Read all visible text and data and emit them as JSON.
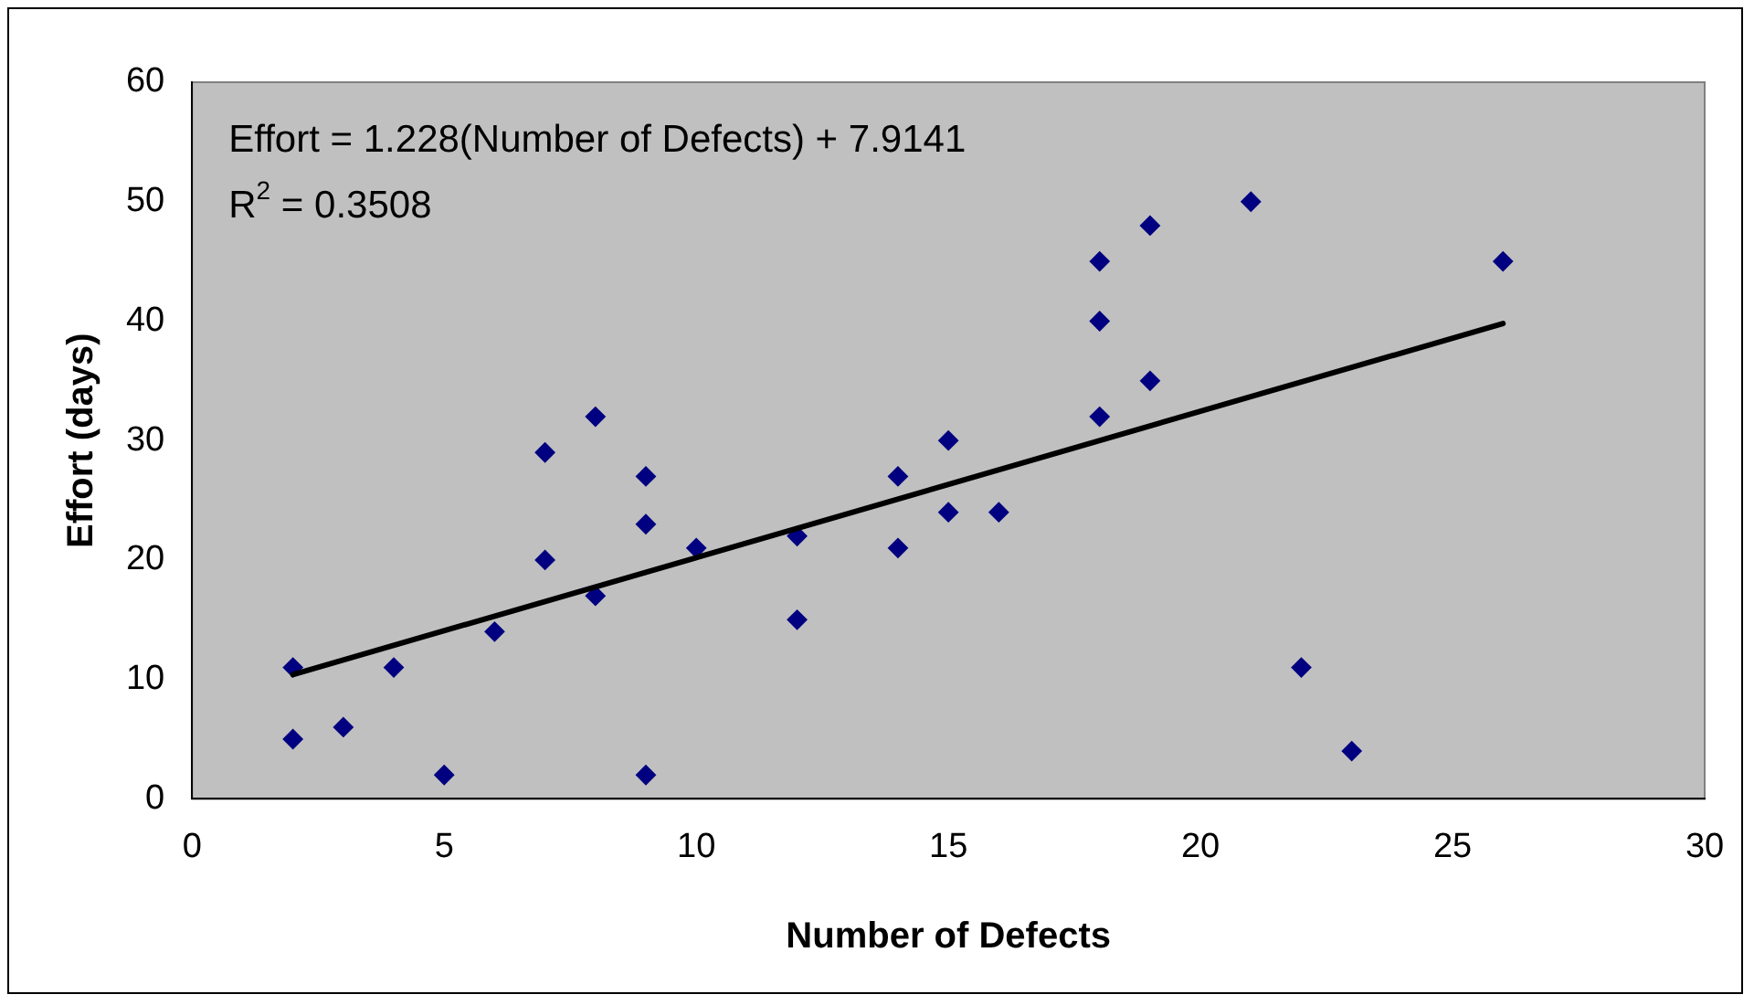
{
  "chart_data": {
    "type": "scatter",
    "xlabel": "Number of Defects",
    "ylabel": "Effort (days)",
    "annotations": [
      "Effort = 1.228(Number of Defects) + 7.9141",
      "R$^{2}$ = 0.3508"
    ],
    "xlim": [
      0,
      30
    ],
    "xticks": [
      0,
      5,
      10,
      15,
      20,
      25,
      30
    ],
    "ylim": [
      0,
      60
    ],
    "yticks": [
      0,
      10,
      20,
      30,
      40,
      50,
      60
    ],
    "grid": false,
    "legend": false,
    "marker": "diamond",
    "series": [
      {
        "type": "scatter",
        "color": "#000080",
        "x": [
          2,
          2,
          3,
          4,
          5,
          6,
          7,
          7,
          8,
          8,
          9,
          9,
          9,
          10,
          12,
          12,
          14,
          14,
          15,
          15,
          16,
          18,
          18,
          18,
          19,
          19,
          21,
          22,
          23,
          26
        ],
        "values": [
          11,
          5,
          6,
          11,
          2,
          14,
          29,
          20,
          32,
          17,
          27,
          23,
          2,
          21,
          22,
          15,
          27,
          21,
          30,
          24,
          24,
          45,
          40,
          32,
          48,
          35,
          50,
          11,
          4,
          45
        ]
      },
      {
        "type": "line",
        "color": "#000000",
        "marker": "none",
        "x": [
          2,
          26
        ],
        "values": [
          10.4,
          39.8
        ]
      }
    ]
  }
}
